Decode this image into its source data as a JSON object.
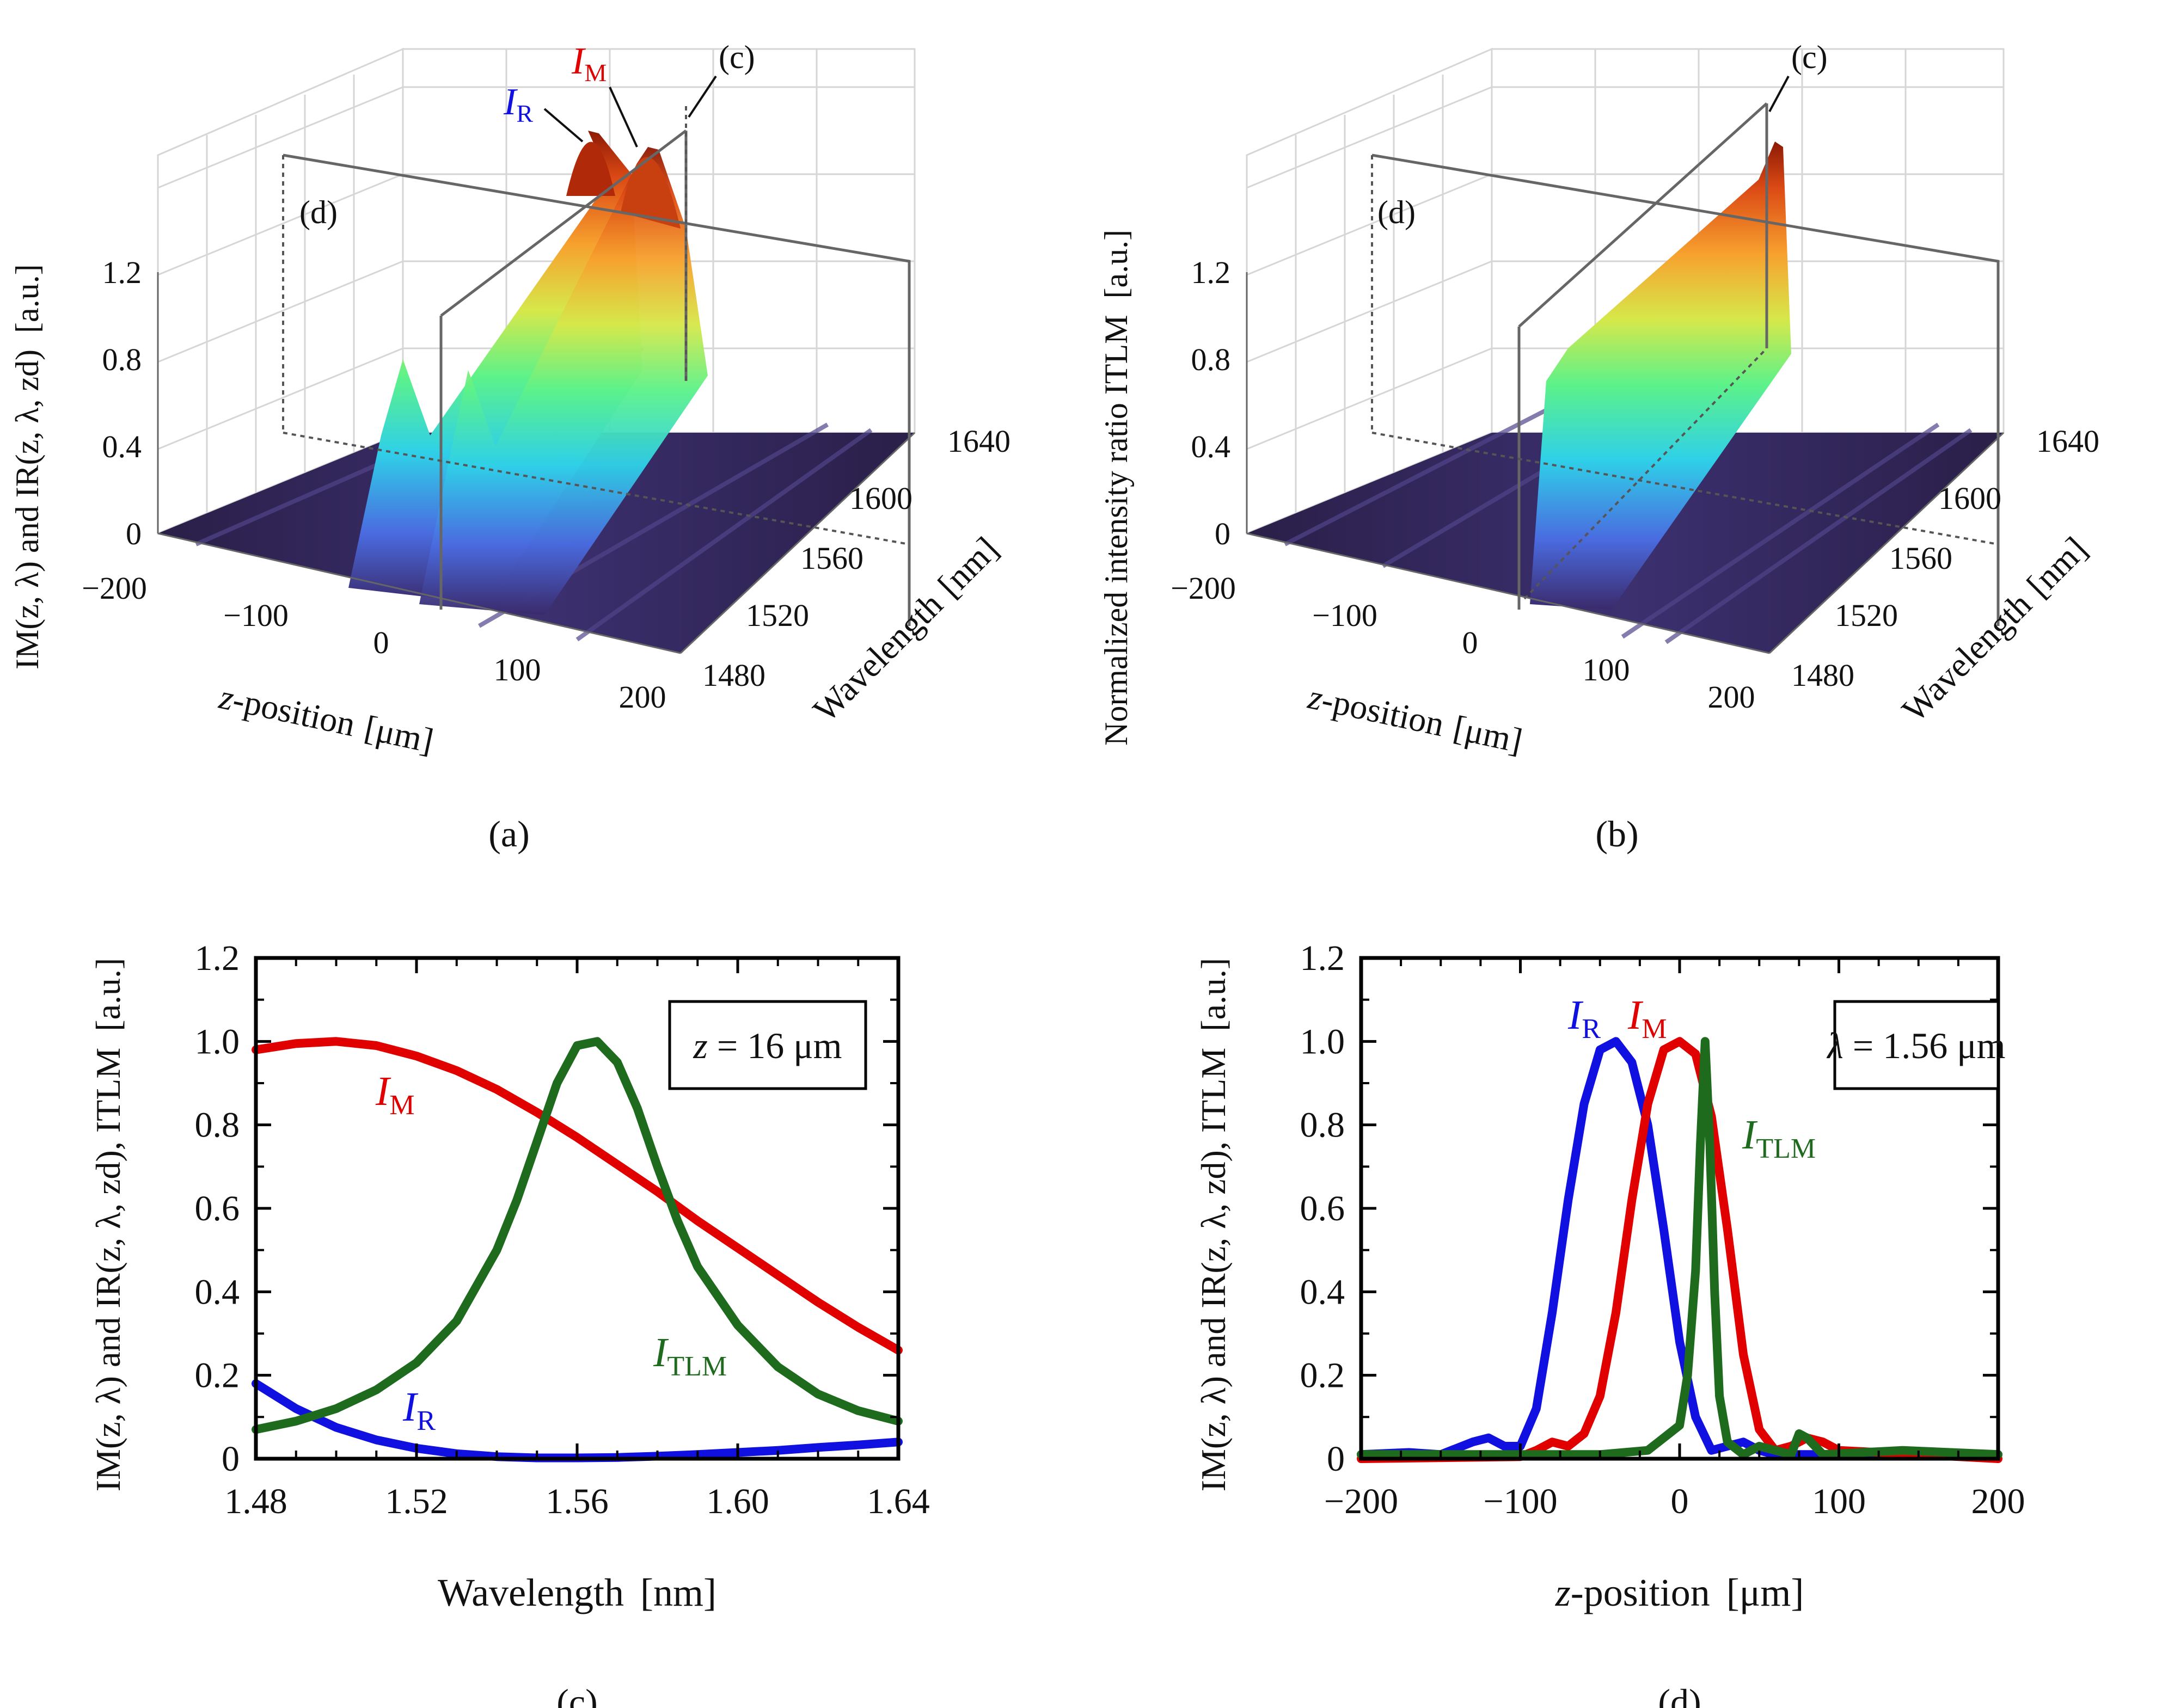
{
  "colors": {
    "red": "#e00000",
    "blue": "#1010e0",
    "green": "#1e6b1e",
    "box": "#666666",
    "grid": "#d8d8d8",
    "floor": "#2a1f45"
  },
  "labels": {
    "sub_a": "(a)",
    "sub_b": "(b)",
    "sub_c": "(c)",
    "sub_d": "(d)",
    "unit_au": "[a.u.]",
    "unit_nm": "[nm]",
    "unit_um": "[μm]",
    "zpos_italic": "z",
    "zpos_rest": "-position",
    "wavelength": "Wavelength",
    "ylabel_3d": "IM(z, λ) and IR(z, λ, zd)",
    "ylabel_2d": "IM(z, λ) and IR(z, λ, zd), ITLM",
    "ylabel_b": "Normalized intensity ratio ITLM",
    "I": "I",
    "M": "M",
    "R": "R",
    "TLM": "TLM",
    "marker_c": "(c)",
    "marker_d": "(d)"
  },
  "chart_data": [
    {
      "id": "a",
      "type": "surface3d",
      "title": "(a)",
      "xlabel": "z-position [μm]",
      "ylabel": "Wavelength [nm]",
      "zlabel": "IM(z, λ) and IR(z, λ, zd) [a.u.]",
      "x_ticks": [
        -200,
        -100,
        0,
        100,
        200
      ],
      "y_ticks": [
        1480,
        1520,
        1560,
        1600,
        1640
      ],
      "z_ticks": [
        0,
        0.4,
        0.8,
        1.2
      ],
      "series": [
        {
          "name": "IR",
          "peak_z": -40,
          "peak_wavelength": 1480
        },
        {
          "name": "IM",
          "peak_z": 0,
          "peak_wavelength": 1500
        }
      ],
      "annotations": [
        "IR",
        "IM",
        "(c)",
        "(d)"
      ]
    },
    {
      "id": "b",
      "type": "surface3d",
      "title": "(b)",
      "xlabel": "z-position [μm]",
      "ylabel": "Wavelength [nm]",
      "zlabel": "Normalized intensity ratio ITLM [a.u.]",
      "x_ticks": [
        -200,
        -100,
        0,
        100,
        200
      ],
      "y_ticks": [
        1480,
        1520,
        1560,
        1600,
        1640
      ],
      "z_ticks": [
        0,
        0.4,
        0.8,
        1.2
      ],
      "series": [
        {
          "name": "ITLM",
          "peak_z": 16
        }
      ],
      "annotations": [
        "(c)",
        "(d)"
      ]
    },
    {
      "id": "c",
      "type": "line",
      "title": "(c)",
      "xlabel": "Wavelength [nm]",
      "ylabel": "IM(z, λ) and IR(z, λ, zd), ITLM [a.u.]",
      "xlim": [
        1.48,
        1.64
      ],
      "ylim": [
        0,
        1.2
      ],
      "x_ticks": [
        "1.48",
        "1.52",
        "1.56",
        "1.60",
        "1.64"
      ],
      "y_ticks": [
        "0",
        "0.2",
        "0.4",
        "0.6",
        "0.8",
        "1.0",
        "1.2"
      ],
      "legend": "z = 16 μm",
      "series": [
        {
          "name": "IM",
          "x": [
            1.48,
            1.49,
            1.5,
            1.51,
            1.52,
            1.53,
            1.54,
            1.55,
            1.56,
            1.57,
            1.58,
            1.59,
            1.6,
            1.61,
            1.62,
            1.63,
            1.64
          ],
          "y": [
            0.98,
            0.995,
            1.0,
            0.99,
            0.965,
            0.93,
            0.885,
            0.83,
            0.77,
            0.705,
            0.64,
            0.57,
            0.505,
            0.44,
            0.375,
            0.315,
            0.26
          ]
        },
        {
          "name": "IR",
          "x": [
            1.48,
            1.49,
            1.5,
            1.51,
            1.52,
            1.53,
            1.54,
            1.55,
            1.56,
            1.57,
            1.58,
            1.59,
            1.6,
            1.61,
            1.62,
            1.63,
            1.64
          ],
          "y": [
            0.18,
            0.12,
            0.075,
            0.045,
            0.025,
            0.012,
            0.005,
            0.002,
            0.002,
            0.003,
            0.006,
            0.01,
            0.015,
            0.02,
            0.027,
            0.033,
            0.04
          ]
        },
        {
          "name": "ITLM",
          "x": [
            1.48,
            1.49,
            1.5,
            1.51,
            1.52,
            1.53,
            1.54,
            1.545,
            1.55,
            1.555,
            1.56,
            1.565,
            1.57,
            1.575,
            1.58,
            1.585,
            1.59,
            1.6,
            1.61,
            1.62,
            1.63,
            1.64
          ],
          "y": [
            0.07,
            0.09,
            0.12,
            0.165,
            0.23,
            0.33,
            0.5,
            0.62,
            0.76,
            0.9,
            0.99,
            1.0,
            0.95,
            0.84,
            0.7,
            0.57,
            0.46,
            0.32,
            0.22,
            0.155,
            0.115,
            0.09
          ]
        }
      ],
      "annotations": [
        "IM",
        "IR",
        "ITLM"
      ]
    },
    {
      "id": "d",
      "type": "line",
      "title": "(d)",
      "xlabel": "z-position [μm]",
      "ylabel": "IM(z, λ) and IR(z, λ, zd), ITLM [a.u.]",
      "xlim": [
        -200,
        200
      ],
      "ylim": [
        0,
        1.2
      ],
      "x_ticks": [
        "−200",
        "−100",
        "0",
        "100",
        "200"
      ],
      "y_ticks": [
        "0",
        "0.2",
        "0.4",
        "0.6",
        "0.8",
        "1.0",
        "1.2"
      ],
      "legend": "λ = 1.56 μm",
      "series": [
        {
          "name": "IR",
          "x": [
            -200,
            -170,
            -150,
            -130,
            -120,
            -110,
            -100,
            -90,
            -80,
            -70,
            -60,
            -50,
            -40,
            -30,
            -20,
            -10,
            0,
            10,
            20,
            30,
            40,
            50,
            60,
            80,
            100,
            200
          ],
          "y": [
            0.01,
            0.015,
            0.01,
            0.04,
            0.05,
            0.03,
            0.03,
            0.12,
            0.35,
            0.62,
            0.85,
            0.98,
            1.0,
            0.95,
            0.8,
            0.55,
            0.28,
            0.1,
            0.02,
            0.03,
            0.04,
            0.02,
            0.01,
            0.01,
            0.01,
            0.01
          ]
        },
        {
          "name": "IM",
          "x": [
            -200,
            -100,
            -90,
            -80,
            -70,
            -60,
            -50,
            -40,
            -30,
            -20,
            -10,
            0,
            10,
            20,
            30,
            40,
            50,
            60,
            70,
            80,
            90,
            100,
            200
          ],
          "y": [
            0.0,
            0.005,
            0.02,
            0.04,
            0.03,
            0.06,
            0.15,
            0.35,
            0.62,
            0.85,
            0.98,
            1.0,
            0.97,
            0.82,
            0.55,
            0.25,
            0.07,
            0.02,
            0.03,
            0.05,
            0.04,
            0.02,
            0.0
          ]
        },
        {
          "name": "ITLM",
          "x": [
            -200,
            -140,
            -100,
            -50,
            -20,
            0,
            5,
            10,
            13,
            16,
            19,
            22,
            25,
            30,
            40,
            50,
            70,
            75,
            80,
            90,
            140,
            200
          ],
          "y": [
            0.01,
            0.01,
            0.01,
            0.01,
            0.02,
            0.08,
            0.2,
            0.45,
            0.75,
            1.0,
            0.75,
            0.4,
            0.15,
            0.04,
            0.01,
            0.03,
            0.01,
            0.06,
            0.05,
            0.01,
            0.02,
            0.01
          ]
        }
      ],
      "annotations": [
        "IR",
        "IM",
        "ITLM"
      ]
    }
  ]
}
